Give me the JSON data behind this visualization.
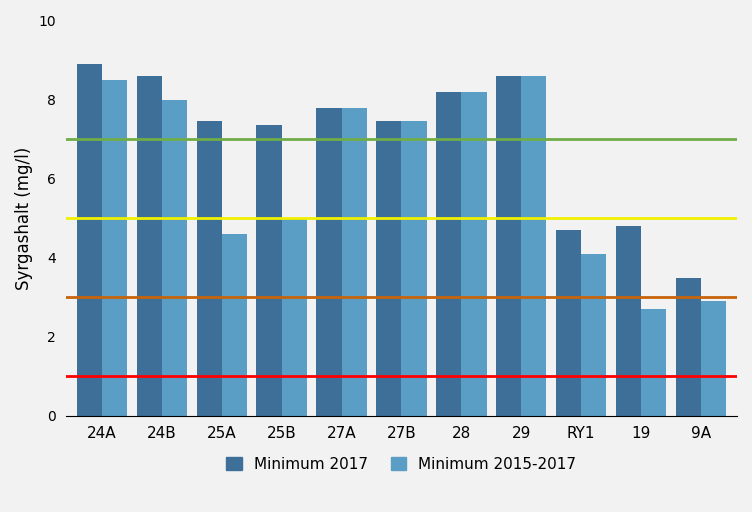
{
  "categories": [
    "24A",
    "24B",
    "25A",
    "25B",
    "27A",
    "27B",
    "28",
    "29",
    "RY1",
    "19",
    "9A"
  ],
  "min_2017": [
    8.9,
    8.6,
    7.45,
    7.35,
    7.8,
    7.45,
    8.2,
    8.6,
    4.7,
    4.8,
    3.5
  ],
  "min_2015_2017": [
    8.5,
    8.0,
    4.6,
    5.0,
    7.8,
    7.45,
    8.2,
    8.6,
    4.1,
    2.7,
    2.9
  ],
  "bar_color_dark": "#3d6f98",
  "bar_color_light": "#5a9dc5",
  "hline_red": 1.0,
  "hline_orange": 3.0,
  "hline_yellow": 5.0,
  "hline_green": 7.0,
  "hline_red_color": "#ff0000",
  "hline_orange_color": "#c8640a",
  "hline_yellow_color": "#f0f000",
  "hline_green_color": "#70ad47",
  "ylabel": "Syrgashalt (mg/l)",
  "ylim": [
    0,
    10
  ],
  "yticks": [
    0,
    2,
    4,
    6,
    8,
    10
  ],
  "legend_label_dark": "Minimum 2017",
  "legend_label_light": "Minimum 2015-2017",
  "background_color": "#f2f2f2",
  "bar_width": 0.42,
  "figsize": [
    7.52,
    5.12
  ],
  "dpi": 100
}
